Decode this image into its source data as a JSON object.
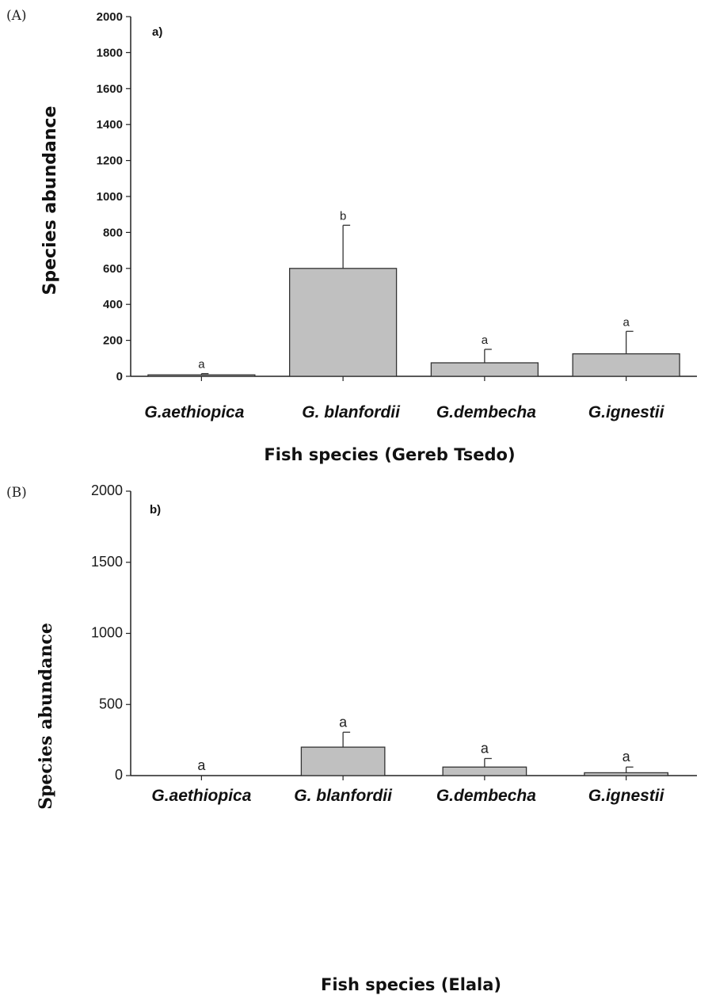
{
  "chart_data": [
    {
      "type": "bar",
      "panel_label": "(A)",
      "title": "a)",
      "xlabel": "Fish species (Gereb Tsedo)",
      "ylabel": "Species abundance",
      "categories": [
        "G.aethiopica",
        "G. blanfordii",
        "G.dembecha",
        "G.ignestii"
      ],
      "values": [
        8,
        600,
        75,
        125
      ],
      "error_upper": [
        15,
        840,
        150,
        250
      ],
      "significance": [
        "a",
        "b",
        "a",
        "a"
      ],
      "ylim": [
        0,
        2000
      ],
      "yticks": [
        0,
        200,
        400,
        600,
        800,
        1000,
        1200,
        1400,
        1600,
        1800,
        2000
      ],
      "bar_color": "#c0c0c0",
      "grid": false
    },
    {
      "type": "bar",
      "panel_label": "(B)",
      "title": "b)",
      "xlabel": "Fish species (Elala)",
      "ylabel": "Species  abundance",
      "categories": [
        "G.aethiopica",
        "G. blanfordii",
        "G.dembecha",
        "G.ignestii"
      ],
      "values": [
        0,
        200,
        60,
        20
      ],
      "error_upper": [
        0,
        305,
        120,
        60
      ],
      "significance": [
        "a",
        "a",
        "a",
        "a"
      ],
      "ylim": [
        0,
        2000
      ],
      "yticks": [
        0,
        500,
        1000,
        1500,
        2000
      ],
      "bar_color": "#c0c0c0",
      "grid": false
    }
  ]
}
